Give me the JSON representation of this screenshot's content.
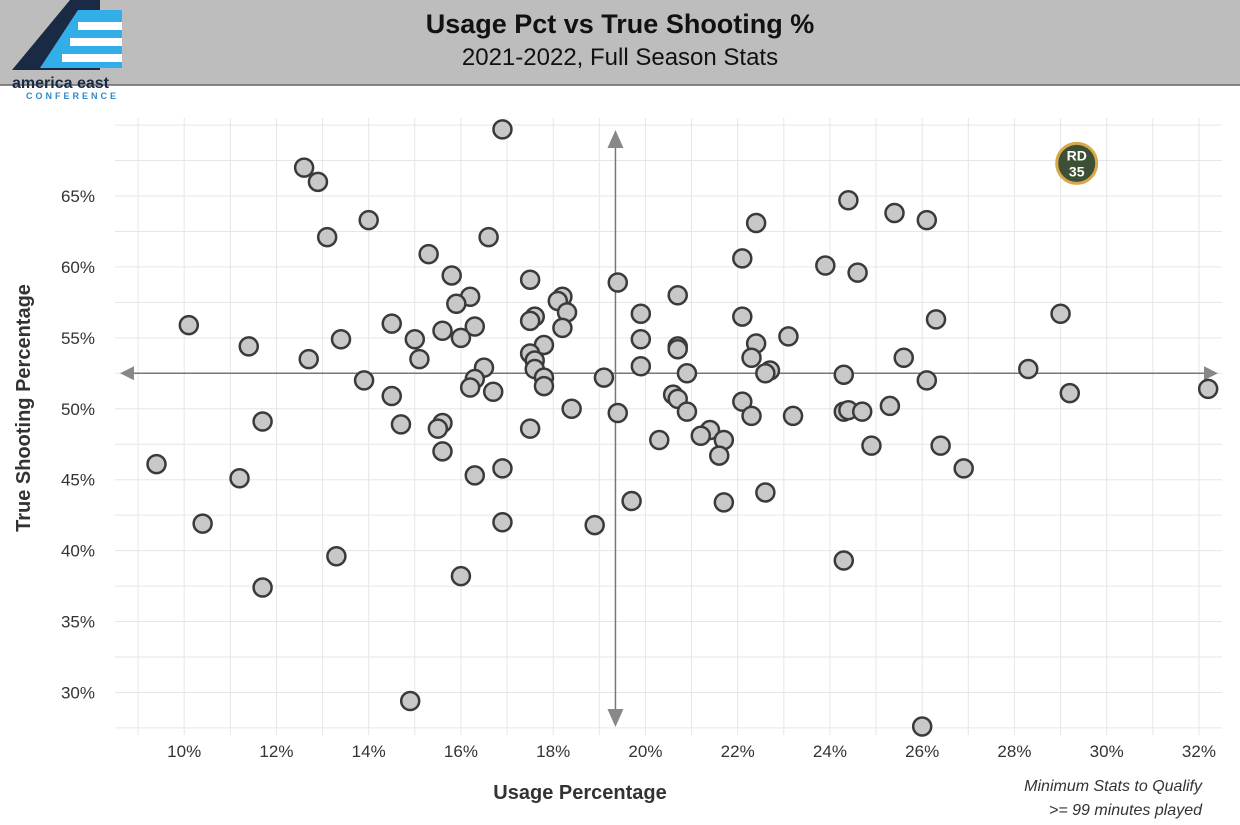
{
  "header": {
    "logo_word": "america east",
    "logo_sub": "CONFERENCE"
  },
  "chart_data": {
    "type": "scatter",
    "title": "Usage Pct vs True Shooting %",
    "subtitle": "2021-2022, Full Season Stats",
    "xlabel": "Usage Percentage",
    "ylabel": "True Shooting Percentage",
    "xlim": [
      8.5,
      32.5
    ],
    "ylim": [
      27,
      70.5
    ],
    "x_ticks": [
      10,
      12,
      14,
      16,
      18,
      20,
      22,
      24,
      26,
      28,
      30,
      32
    ],
    "x_tick_labels": [
      "10%",
      "12%",
      "14%",
      "16%",
      "18%",
      "20%",
      "22%",
      "24%",
      "26%",
      "28%",
      "30%",
      "32%"
    ],
    "y_ticks": [
      30,
      35,
      40,
      45,
      50,
      55,
      60,
      65
    ],
    "y_tick_labels": [
      "30%",
      "35%",
      "40%",
      "45%",
      "50%",
      "55%",
      "60%",
      "65%"
    ],
    "grid": true,
    "reference_lines": {
      "x": 19.35,
      "y": 52.5
    },
    "note_lines": [
      "Minimum Stats to Qualify",
      ">= 99 minutes played"
    ],
    "colors": {
      "point_fill": "#c8c8c8",
      "point_stroke": "#3a3a3a",
      "highlight_fill": "#3d4f35",
      "highlight_stroke": "#d9a84a",
      "header_bg": "#bdbdbd"
    },
    "highlight": {
      "label_lines": [
        "RD",
        "35"
      ],
      "x": 29.35,
      "y": 67.3
    },
    "points": [
      {
        "x": 16.9,
        "y": 69.7
      },
      {
        "x": 12.6,
        "y": 67.0
      },
      {
        "x": 12.9,
        "y": 66.0
      },
      {
        "x": 24.4,
        "y": 64.7
      },
      {
        "x": 25.4,
        "y": 63.8
      },
      {
        "x": 26.1,
        "y": 63.3
      },
      {
        "x": 22.4,
        "y": 63.1
      },
      {
        "x": 14.0,
        "y": 63.3
      },
      {
        "x": 13.1,
        "y": 62.1
      },
      {
        "x": 16.6,
        "y": 62.1
      },
      {
        "x": 15.3,
        "y": 60.9
      },
      {
        "x": 22.1,
        "y": 60.6
      },
      {
        "x": 23.9,
        "y": 60.1
      },
      {
        "x": 24.6,
        "y": 59.6
      },
      {
        "x": 15.8,
        "y": 59.4
      },
      {
        "x": 17.5,
        "y": 59.1
      },
      {
        "x": 19.4,
        "y": 58.9
      },
      {
        "x": 16.2,
        "y": 57.9
      },
      {
        "x": 18.2,
        "y": 57.9
      },
      {
        "x": 20.7,
        "y": 58.0
      },
      {
        "x": 15.9,
        "y": 57.4
      },
      {
        "x": 18.1,
        "y": 57.6
      },
      {
        "x": 18.3,
        "y": 56.8
      },
      {
        "x": 19.9,
        "y": 56.7
      },
      {
        "x": 17.6,
        "y": 56.5
      },
      {
        "x": 17.5,
        "y": 56.2
      },
      {
        "x": 22.1,
        "y": 56.5
      },
      {
        "x": 26.3,
        "y": 56.3
      },
      {
        "x": 29.0,
        "y": 56.7
      },
      {
        "x": 10.1,
        "y": 55.9
      },
      {
        "x": 14.5,
        "y": 56.0
      },
      {
        "x": 15.6,
        "y": 55.5
      },
      {
        "x": 16.3,
        "y": 55.8
      },
      {
        "x": 18.2,
        "y": 55.7
      },
      {
        "x": 15.0,
        "y": 54.9
      },
      {
        "x": 16.0,
        "y": 55.0
      },
      {
        "x": 13.4,
        "y": 54.9
      },
      {
        "x": 19.9,
        "y": 54.9
      },
      {
        "x": 23.1,
        "y": 55.1
      },
      {
        "x": 11.4,
        "y": 54.4
      },
      {
        "x": 17.8,
        "y": 54.5
      },
      {
        "x": 20.7,
        "y": 54.4
      },
      {
        "x": 20.7,
        "y": 54.2
      },
      {
        "x": 22.4,
        "y": 54.6
      },
      {
        "x": 12.7,
        "y": 53.5
      },
      {
        "x": 15.1,
        "y": 53.5
      },
      {
        "x": 17.5,
        "y": 53.9
      },
      {
        "x": 17.6,
        "y": 53.4
      },
      {
        "x": 22.3,
        "y": 53.6
      },
      {
        "x": 25.6,
        "y": 53.6
      },
      {
        "x": 16.5,
        "y": 52.9
      },
      {
        "x": 17.6,
        "y": 52.8
      },
      {
        "x": 19.9,
        "y": 53.0
      },
      {
        "x": 22.7,
        "y": 52.7
      },
      {
        "x": 22.6,
        "y": 52.5
      },
      {
        "x": 20.9,
        "y": 52.5
      },
      {
        "x": 24.3,
        "y": 52.4
      },
      {
        "x": 28.3,
        "y": 52.8
      },
      {
        "x": 13.9,
        "y": 52.0
      },
      {
        "x": 16.3,
        "y": 52.1
      },
      {
        "x": 17.8,
        "y": 52.2
      },
      {
        "x": 19.1,
        "y": 52.2
      },
      {
        "x": 26.1,
        "y": 52.0
      },
      {
        "x": 16.2,
        "y": 51.5
      },
      {
        "x": 16.7,
        "y": 51.2
      },
      {
        "x": 17.8,
        "y": 51.6
      },
      {
        "x": 32.2,
        "y": 51.4
      },
      {
        "x": 29.2,
        "y": 51.1
      },
      {
        "x": 14.5,
        "y": 50.9
      },
      {
        "x": 20.6,
        "y": 51.0
      },
      {
        "x": 20.7,
        "y": 50.7
      },
      {
        "x": 22.1,
        "y": 50.5
      },
      {
        "x": 25.3,
        "y": 50.2
      },
      {
        "x": 18.4,
        "y": 50.0
      },
      {
        "x": 19.4,
        "y": 49.7
      },
      {
        "x": 20.9,
        "y": 49.8
      },
      {
        "x": 22.3,
        "y": 49.5
      },
      {
        "x": 23.2,
        "y": 49.5
      },
      {
        "x": 24.3,
        "y": 49.8
      },
      {
        "x": 24.4,
        "y": 49.9
      },
      {
        "x": 24.7,
        "y": 49.8
      },
      {
        "x": 11.7,
        "y": 49.1
      },
      {
        "x": 14.7,
        "y": 48.9
      },
      {
        "x": 15.6,
        "y": 49.0
      },
      {
        "x": 15.5,
        "y": 48.6
      },
      {
        "x": 17.5,
        "y": 48.6
      },
      {
        "x": 21.4,
        "y": 48.5
      },
      {
        "x": 21.2,
        "y": 48.1
      },
      {
        "x": 20.3,
        "y": 47.8
      },
      {
        "x": 21.7,
        "y": 47.8
      },
      {
        "x": 24.9,
        "y": 47.4
      },
      {
        "x": 26.4,
        "y": 47.4
      },
      {
        "x": 15.6,
        "y": 47.0
      },
      {
        "x": 21.6,
        "y": 46.7
      },
      {
        "x": 9.4,
        "y": 46.1
      },
      {
        "x": 16.9,
        "y": 45.8
      },
      {
        "x": 26.9,
        "y": 45.8
      },
      {
        "x": 16.3,
        "y": 45.3
      },
      {
        "x": 11.2,
        "y": 45.1
      },
      {
        "x": 22.6,
        "y": 44.1
      },
      {
        "x": 19.7,
        "y": 43.5
      },
      {
        "x": 21.7,
        "y": 43.4
      },
      {
        "x": 10.4,
        "y": 41.9
      },
      {
        "x": 16.9,
        "y": 42.0
      },
      {
        "x": 18.9,
        "y": 41.8
      },
      {
        "x": 13.3,
        "y": 39.6
      },
      {
        "x": 24.3,
        "y": 39.3
      },
      {
        "x": 16.0,
        "y": 38.2
      },
      {
        "x": 11.7,
        "y": 37.4
      },
      {
        "x": 14.9,
        "y": 29.4
      },
      {
        "x": 26.0,
        "y": 27.6
      }
    ]
  }
}
